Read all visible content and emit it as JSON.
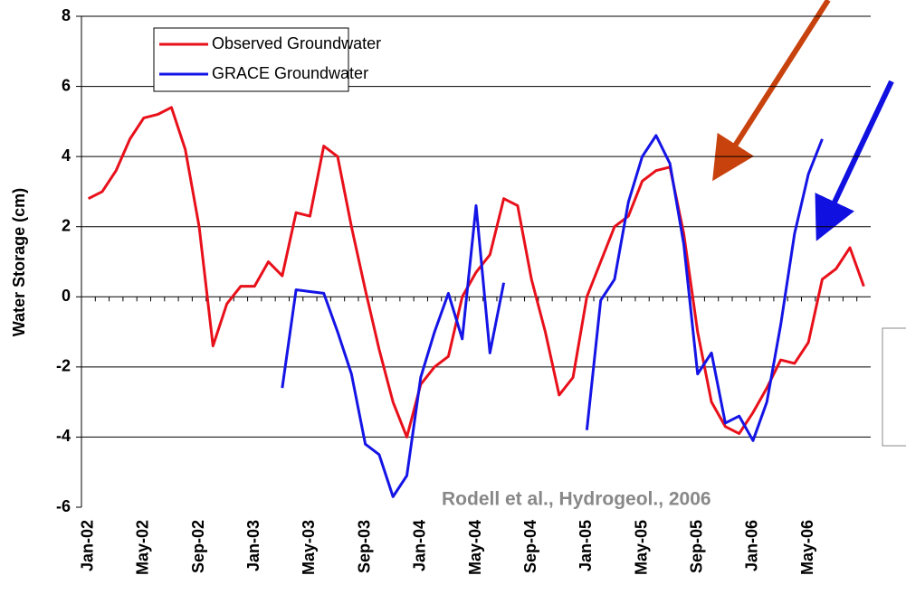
{
  "chart_data": {
    "type": "line",
    "ylabel": "Water Storage (cm)",
    "annotation": "Rodell et al., Hydrogeol., 2006",
    "categories": [
      "Jan-02",
      null,
      null,
      null,
      "May-02",
      null,
      null,
      null,
      "Sep-02",
      null,
      null,
      null,
      "Jan-03",
      null,
      null,
      null,
      "May-03",
      null,
      null,
      null,
      "Sep-03",
      null,
      null,
      null,
      "Jan-04",
      null,
      null,
      null,
      "May-04",
      null,
      null,
      null,
      "Sep-04",
      null,
      null,
      null,
      "Jan-05",
      null,
      null,
      null,
      "May-05",
      null,
      null,
      null,
      "Sep-05",
      null,
      null,
      null,
      "Jan-06",
      null,
      null,
      null,
      "May-06",
      null,
      null,
      null,
      null
    ],
    "series": [
      {
        "name": "Observed Groundwater",
        "color": "#e8101a",
        "values": [
          2.8,
          3.0,
          3.6,
          4.5,
          5.1,
          5.2,
          5.4,
          4.2,
          2.0,
          -1.4,
          -0.2,
          0.3,
          0.3,
          1.0,
          0.6,
          2.4,
          2.3,
          4.3,
          4.0,
          2.0,
          0.2,
          -1.5,
          -3.0,
          -4.0,
          -2.5,
          -2.0,
          -1.7,
          0.0,
          0.7,
          1.2,
          2.8,
          2.6,
          0.5,
          -1.0,
          -2.8,
          -2.3,
          0.0,
          1.0,
          2.0,
          2.3,
          3.3,
          3.6,
          3.7,
          1.8,
          -1.0,
          -3.0,
          -3.7,
          -3.9,
          -3.3,
          -2.6,
          -1.8,
          -1.9,
          -1.3,
          0.5,
          0.8,
          1.4,
          0.3
        ]
      },
      {
        "name": "GRACE Groundwater",
        "color": "#1414e6",
        "values": [
          null,
          null,
          null,
          null,
          null,
          null,
          null,
          null,
          null,
          null,
          null,
          null,
          null,
          null,
          -2.6,
          0.2,
          0.15,
          0.1,
          -1.0,
          -2.2,
          -4.2,
          -4.5,
          -5.7,
          -5.1,
          -2.3,
          -1.0,
          0.1,
          -1.2,
          2.6,
          -1.6,
          0.4,
          null,
          null,
          null,
          null,
          null,
          -3.8,
          -0.1,
          0.5,
          2.7,
          4.0,
          4.6,
          3.8,
          1.5,
          -2.2,
          -1.6,
          -3.6,
          -3.4,
          -4.1,
          -3.0,
          -0.8,
          1.8,
          3.5,
          4.5,
          null,
          null,
          null
        ]
      }
    ],
    "ylim": [
      -6,
      8
    ],
    "yticks": [
      -6,
      -4,
      -2,
      0,
      2,
      4,
      6,
      8
    ],
    "grid": true
  }
}
